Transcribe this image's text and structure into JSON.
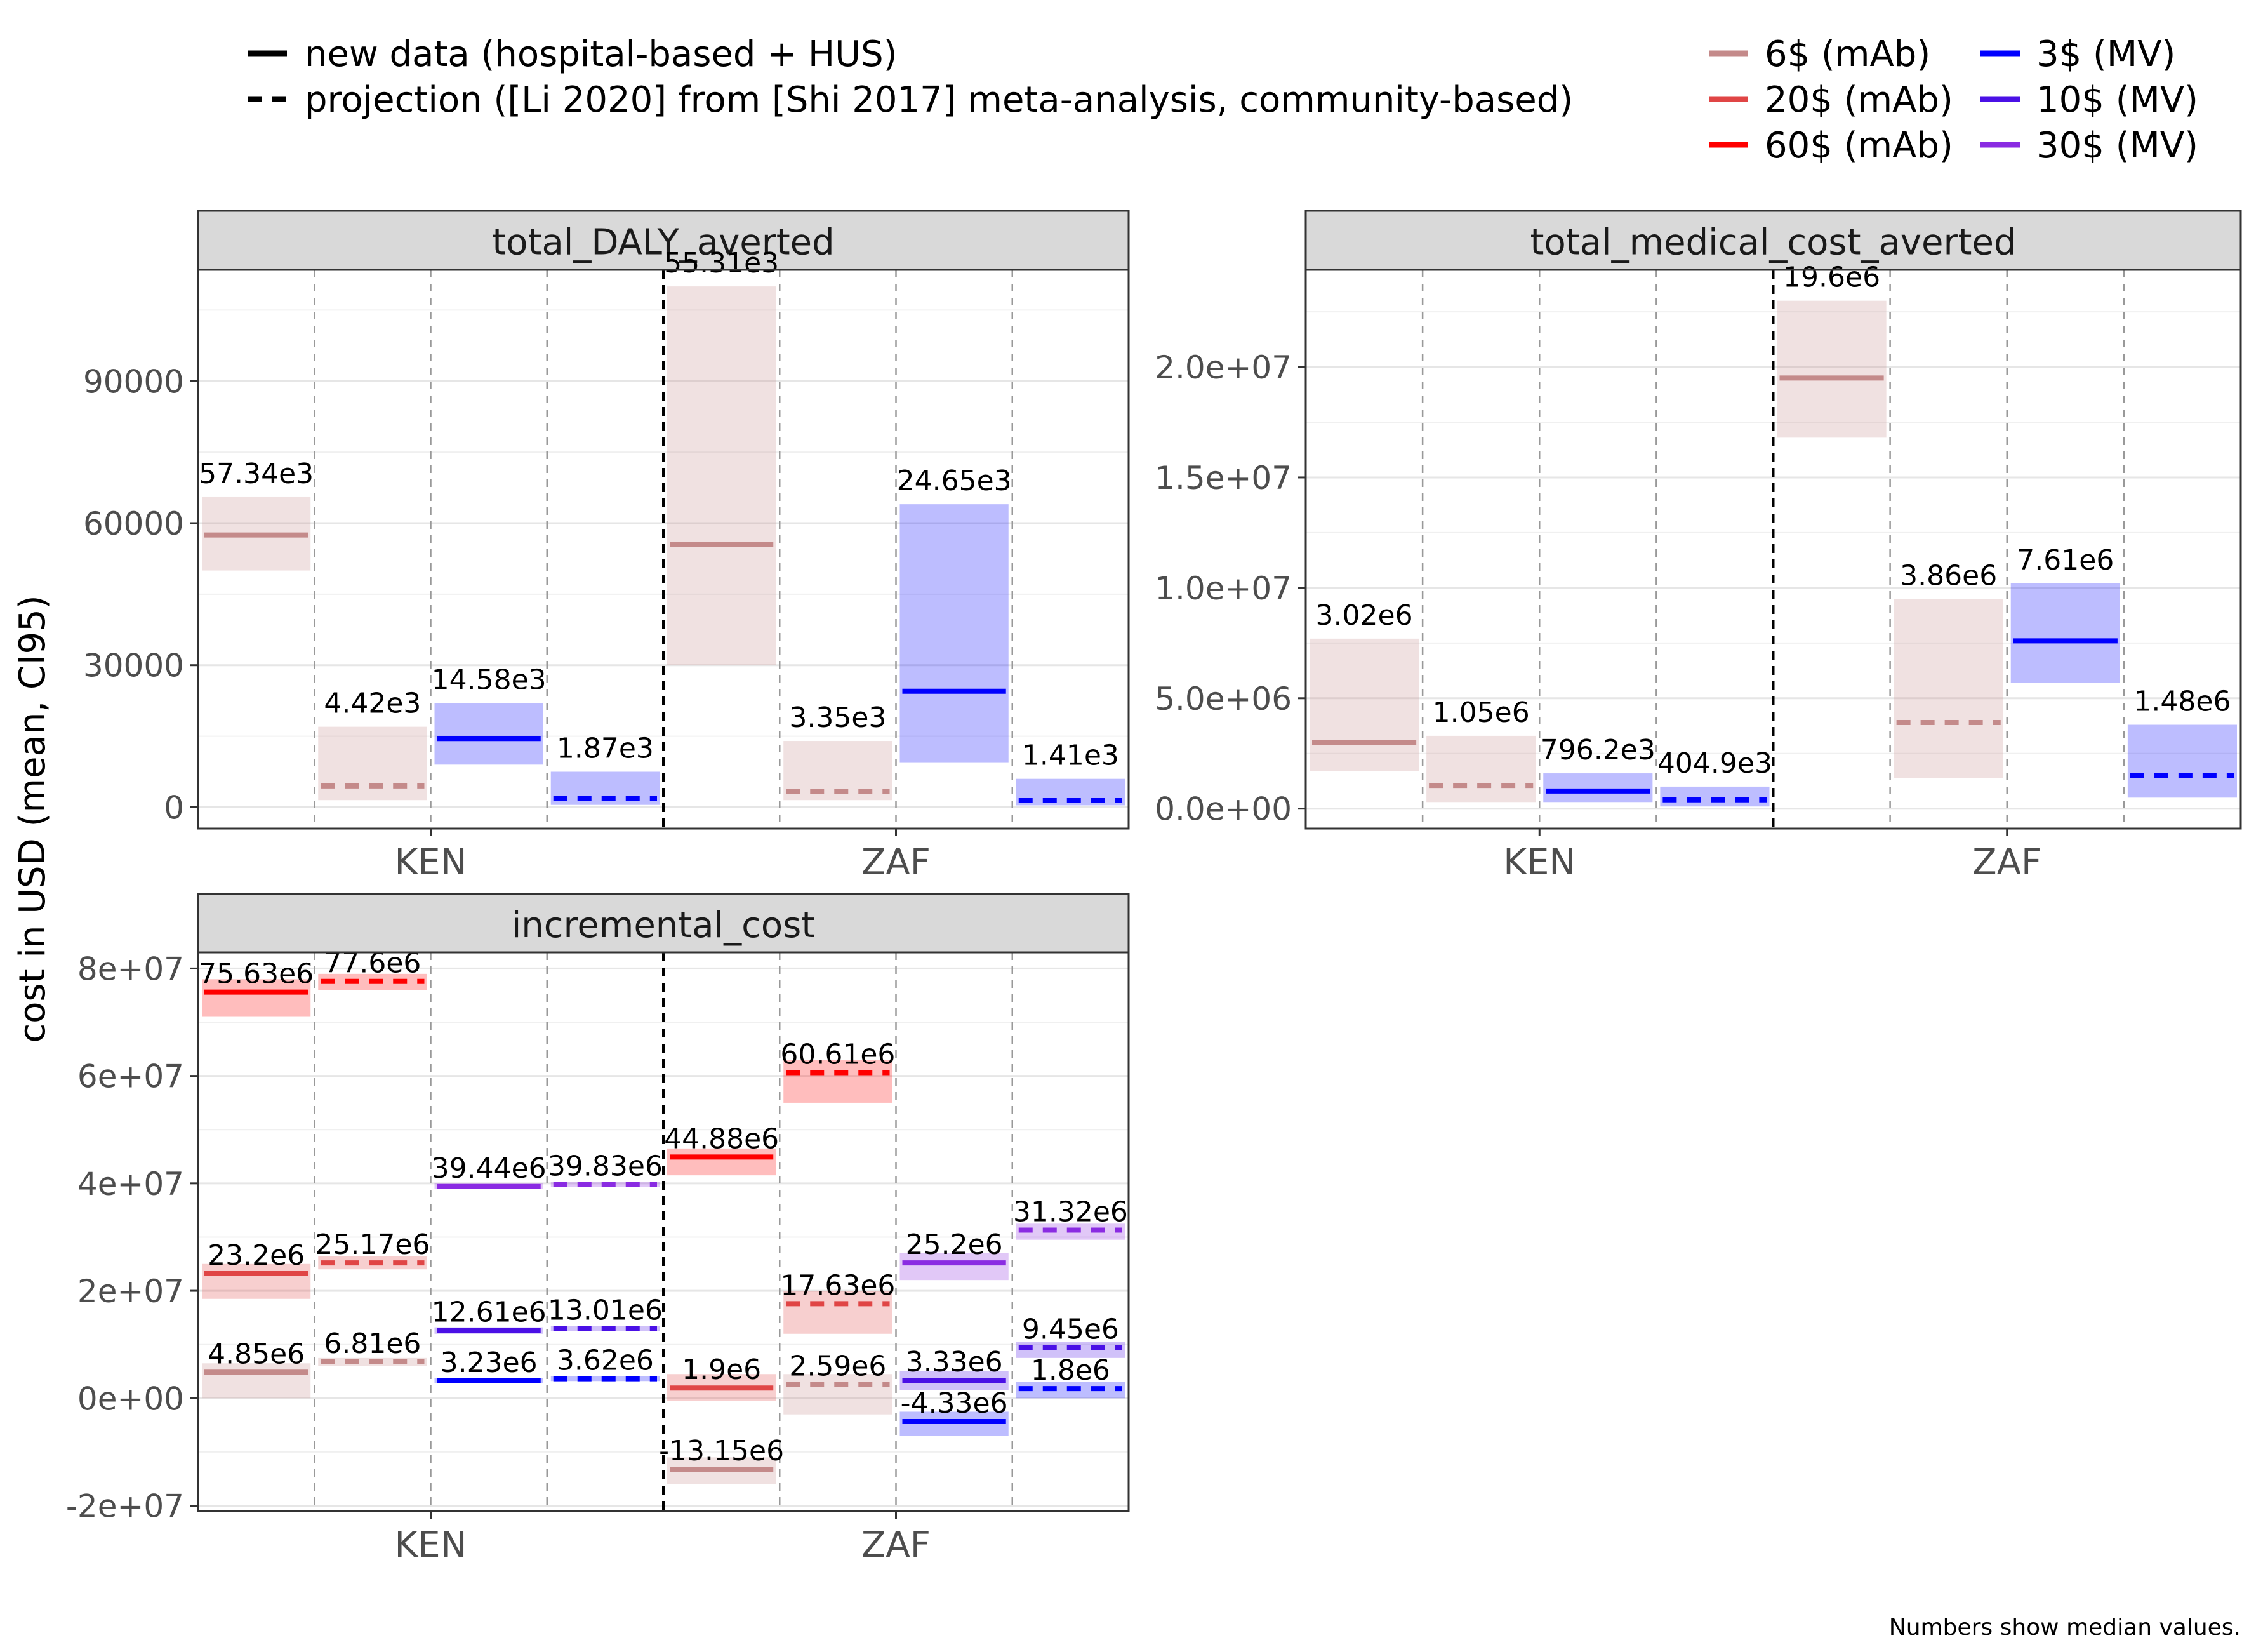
{
  "legend": {
    "linetypes": [
      {
        "label": "new data (hospital-based + HUS)",
        "dash": "solid"
      },
      {
        "label": "projection ([Li 2020] from [Shi 2017] meta-analysis, community-based)",
        "dash": "dashed"
      }
    ],
    "colors": [
      {
        "label": "6$ (mAb)",
        "color": "#c48a8a"
      },
      {
        "label": "20$ (mAb)",
        "color": "#e04545"
      },
      {
        "label": "60$ (mAb)",
        "color": "#ff0000"
      },
      {
        "label": "3$ (MV)",
        "color": "#0000ff"
      },
      {
        "label": "10$ (MV)",
        "color": "#4a10e6"
      },
      {
        "label": "30$ (MV)",
        "color": "#8a2be2"
      }
    ]
  },
  "ylabel": "cost in USD (mean, CI95)",
  "footnote": "Numbers show median values.",
  "chart_data": [
    {
      "type": "bar",
      "title": "total_DALY_averted",
      "categories": [
        "KEN",
        "ZAF"
      ],
      "ylim": [
        -4500,
        113500
      ],
      "yticks": [
        0,
        30000,
        60000,
        90000
      ],
      "yticklabels": [
        "0",
        "30000",
        "60000",
        "90000"
      ],
      "items": [
        {
          "country": "KEN",
          "slot": 0,
          "color": "#c48a8a",
          "dash": "solid",
          "y": 57500,
          "lo": 50000,
          "hi": 65500,
          "label": "57.34e3"
        },
        {
          "country": "KEN",
          "slot": 1,
          "color": "#c48a8a",
          "dash": "dashed",
          "y": 4500,
          "lo": 1500,
          "hi": 17000,
          "label": "4.42e3"
        },
        {
          "country": "KEN",
          "slot": 2,
          "color": "#0000ff",
          "dash": "solid",
          "y": 14500,
          "lo": 9000,
          "hi": 22000,
          "label": "14.58e3"
        },
        {
          "country": "KEN",
          "slot": 3,
          "color": "#0000ff",
          "dash": "dashed",
          "y": 1900,
          "lo": 500,
          "hi": 7500,
          "label": "1.87e3"
        },
        {
          "country": "ZAF",
          "slot": 0,
          "color": "#c48a8a",
          "dash": "solid",
          "y": 55500,
          "lo": 30000,
          "hi": 110000,
          "label": "55.31e3"
        },
        {
          "country": "ZAF",
          "slot": 1,
          "color": "#c48a8a",
          "dash": "dashed",
          "y": 3300,
          "lo": 1500,
          "hi": 14000,
          "label": "3.35e3"
        },
        {
          "country": "ZAF",
          "slot": 2,
          "color": "#0000ff",
          "dash": "solid",
          "y": 24500,
          "lo": 9500,
          "hi": 64000,
          "label": "24.65e3"
        },
        {
          "country": "ZAF",
          "slot": 3,
          "color": "#0000ff",
          "dash": "dashed",
          "y": 1400,
          "lo": 400,
          "hi": 6000,
          "label": "1.41e3"
        }
      ]
    },
    {
      "type": "bar",
      "title": "total_medical_cost_averted",
      "categories": [
        "KEN",
        "ZAF"
      ],
      "ylim": [
        -900000,
        24400000
      ],
      "yticks": [
        0,
        5000000,
        10000000,
        15000000,
        20000000
      ],
      "yticklabels": [
        "0.0e+00",
        "5.0e+06",
        "1.0e+07",
        "1.5e+07",
        "2.0e+07"
      ],
      "items": [
        {
          "country": "KEN",
          "slot": 0,
          "color": "#c48a8a",
          "dash": "solid",
          "y": 3000000,
          "lo": 1700000,
          "hi": 7700000,
          "label": "3.02e6"
        },
        {
          "country": "KEN",
          "slot": 1,
          "color": "#c48a8a",
          "dash": "dashed",
          "y": 1050000,
          "lo": 300000,
          "hi": 3300000,
          "label": "1.05e6"
        },
        {
          "country": "KEN",
          "slot": 2,
          "color": "#0000ff",
          "dash": "solid",
          "y": 800000,
          "lo": 300000,
          "hi": 1600000,
          "label": "796.2e3"
        },
        {
          "country": "KEN",
          "slot": 3,
          "color": "#0000ff",
          "dash": "dashed",
          "y": 400000,
          "lo": 100000,
          "hi": 1000000,
          "label": "404.9e3"
        },
        {
          "country": "ZAF",
          "slot": 0,
          "color": "#c48a8a",
          "dash": "solid",
          "y": 19500000,
          "lo": 16800000,
          "hi": 23000000,
          "label": "19.6e6"
        },
        {
          "country": "ZAF",
          "slot": 1,
          "color": "#c48a8a",
          "dash": "dashed",
          "y": 3900000,
          "lo": 1400000,
          "hi": 9500000,
          "label": "3.86e6"
        },
        {
          "country": "ZAF",
          "slot": 2,
          "color": "#0000ff",
          "dash": "solid",
          "y": 7600000,
          "lo": 5700000,
          "hi": 10200000,
          "label": "7.61e6"
        },
        {
          "country": "ZAF",
          "slot": 3,
          "color": "#0000ff",
          "dash": "dashed",
          "y": 1500000,
          "lo": 500000,
          "hi": 3800000,
          "label": "1.48e6"
        }
      ]
    },
    {
      "type": "bar",
      "title": "incremental_cost",
      "categories": [
        "KEN",
        "ZAF"
      ],
      "ylim": [
        -21000000,
        83000000
      ],
      "yticks": [
        -20000000,
        0,
        20000000,
        40000000,
        60000000,
        80000000
      ],
      "yticklabels": [
        "-2e+07",
        "0e+00",
        "2e+07",
        "4e+07",
        "6e+07",
        "8e+07"
      ],
      "items": [
        {
          "country": "KEN",
          "slot": 0,
          "color": "#ff0000",
          "dash": "solid",
          "y": 75600000,
          "lo": 71000000,
          "hi": 78000000,
          "label": "75.63e6"
        },
        {
          "country": "KEN",
          "slot": 0,
          "color": "#e04545",
          "dash": "solid",
          "y": 23200000,
          "lo": 18500000,
          "hi": 25000000,
          "label": "23.2e6"
        },
        {
          "country": "KEN",
          "slot": 0,
          "color": "#c48a8a",
          "dash": "solid",
          "y": 4850000,
          "lo": 0,
          "hi": 6500000,
          "label": "4.85e6"
        },
        {
          "country": "KEN",
          "slot": 1,
          "color": "#ff0000",
          "dash": "dashed",
          "y": 77600000,
          "lo": 76000000,
          "hi": 79000000,
          "label": "77.6e6"
        },
        {
          "country": "KEN",
          "slot": 1,
          "color": "#e04545",
          "dash": "dashed",
          "y": 25200000,
          "lo": 24000000,
          "hi": 26500000,
          "label": "25.17e6"
        },
        {
          "country": "KEN",
          "slot": 1,
          "color": "#c48a8a",
          "dash": "dashed",
          "y": 6800000,
          "lo": 6000000,
          "hi": 7500000,
          "label": "6.81e6"
        },
        {
          "country": "KEN",
          "slot": 2,
          "color": "#8a2be2",
          "dash": "solid",
          "y": 39400000,
          "lo": 39000000,
          "hi": 40000000,
          "label": "39.44e6"
        },
        {
          "country": "KEN",
          "slot": 2,
          "color": "#4a10e6",
          "dash": "solid",
          "y": 12600000,
          "lo": 12000000,
          "hi": 13200000,
          "label": "12.61e6"
        },
        {
          "country": "KEN",
          "slot": 2,
          "color": "#0000ff",
          "dash": "solid",
          "y": 3230000,
          "lo": 2800000,
          "hi": 3700000,
          "label": "3.23e6"
        },
        {
          "country": "KEN",
          "slot": 3,
          "color": "#8a2be2",
          "dash": "dashed",
          "y": 39800000,
          "lo": 39300000,
          "hi": 40300000,
          "label": "39.83e6"
        },
        {
          "country": "KEN",
          "slot": 3,
          "color": "#4a10e6",
          "dash": "dashed",
          "y": 13000000,
          "lo": 12500000,
          "hi": 13500000,
          "label": "13.01e6"
        },
        {
          "country": "KEN",
          "slot": 3,
          "color": "#0000ff",
          "dash": "dashed",
          "y": 3620000,
          "lo": 3200000,
          "hi": 4100000,
          "label": "3.62e6"
        },
        {
          "country": "ZAF",
          "slot": 0,
          "color": "#ff0000",
          "dash": "solid",
          "y": 44900000,
          "lo": 41500000,
          "hi": 46500000,
          "label": "44.88e6"
        },
        {
          "country": "ZAF",
          "slot": 0,
          "color": "#e04545",
          "dash": "solid",
          "y": 1900000,
          "lo": -500000,
          "hi": 4500000,
          "label": "1.9e6"
        },
        {
          "country": "ZAF",
          "slot": 0,
          "color": "#c48a8a",
          "dash": "solid",
          "y": -13200000,
          "lo": -16000000,
          "hi": -11000000,
          "label": "-13.15e6"
        },
        {
          "country": "ZAF",
          "slot": 1,
          "color": "#ff0000",
          "dash": "dashed",
          "y": 60600000,
          "lo": 55000000,
          "hi": 63000000,
          "label": "60.61e6"
        },
        {
          "country": "ZAF",
          "slot": 1,
          "color": "#e04545",
          "dash": "dashed",
          "y": 17600000,
          "lo": 12000000,
          "hi": 20000000,
          "label": "17.63e6"
        },
        {
          "country": "ZAF",
          "slot": 1,
          "color": "#c48a8a",
          "dash": "dashed",
          "y": 2590000,
          "lo": -3000000,
          "hi": 4500000,
          "label": "2.59e6"
        },
        {
          "country": "ZAF",
          "slot": 2,
          "color": "#8a2be2",
          "dash": "solid",
          "y": 25200000,
          "lo": 22000000,
          "hi": 27000000,
          "label": "25.2e6"
        },
        {
          "country": "ZAF",
          "slot": 2,
          "color": "#4a10e6",
          "dash": "solid",
          "y": 3330000,
          "lo": 1500000,
          "hi": 5000000,
          "label": "3.33e6"
        },
        {
          "country": "ZAF",
          "slot": 2,
          "color": "#0000ff",
          "dash": "solid",
          "y": -4330000,
          "lo": -7000000,
          "hi": -2500000,
          "label": "-4.33e6"
        },
        {
          "country": "ZAF",
          "slot": 3,
          "color": "#8a2be2",
          "dash": "dashed",
          "y": 31300000,
          "lo": 29500000,
          "hi": 32500000,
          "label": "31.32e6"
        },
        {
          "country": "ZAF",
          "slot": 3,
          "color": "#4a10e6",
          "dash": "dashed",
          "y": 9450000,
          "lo": 7500000,
          "hi": 10500000,
          "label": "9.45e6"
        },
        {
          "country": "ZAF",
          "slot": 3,
          "color": "#0000ff",
          "dash": "dashed",
          "y": 1800000,
          "lo": 0,
          "hi": 3000000,
          "label": "1.8e6"
        }
      ]
    }
  ]
}
